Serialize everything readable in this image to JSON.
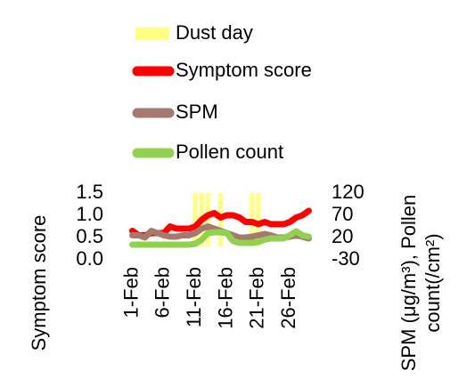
{
  "chart_data": {
    "type": "line",
    "categories": [
      "1-Feb",
      null,
      null,
      null,
      null,
      "6-Feb",
      null,
      null,
      null,
      null,
      "11-Feb",
      null,
      null,
      null,
      null,
      "16-Feb",
      null,
      null,
      null,
      null,
      "21-Feb",
      null,
      null,
      null,
      null,
      "26-Feb",
      null,
      null,
      null
    ],
    "series": [
      {
        "name": "Dust day",
        "type": "bar",
        "axis": "y2",
        "color": "#ffff80",
        "values": [
          null,
          null,
          null,
          null,
          null,
          null,
          null,
          null,
          null,
          null,
          120,
          120,
          120,
          null,
          120,
          null,
          null,
          null,
          null,
          120,
          120,
          null,
          null,
          null,
          null,
          null,
          null,
          null,
          null
        ]
      },
      {
        "name": "Symptom score",
        "type": "line",
        "color": "#ff0000",
        "values": [
          0.65,
          0.55,
          0.55,
          0.6,
          0.6,
          0.6,
          0.75,
          0.7,
          0.7,
          0.7,
          0.75,
          0.9,
          1.0,
          1.05,
          0.95,
          1.0,
          1.0,
          0.95,
          0.85,
          0.85,
          0.8,
          0.85,
          0.8,
          0.8,
          0.8,
          0.85,
          0.95,
          1.0,
          1.1
        ]
      },
      {
        "name": "SPM",
        "type": "line",
        "axis": "y2",
        "color": "#a47a6e",
        "values": [
          25,
          25,
          20,
          35,
          30,
          25,
          22,
          22,
          25,
          25,
          30,
          40,
          45,
          40,
          35,
          30,
          25,
          20,
          20,
          22,
          25,
          28,
          25,
          20,
          20,
          22,
          25,
          22,
          18
        ]
      },
      {
        "name": "Pollen count",
        "type": "line",
        "axis": "y2",
        "color": "#92d050",
        "values": [
          4,
          4,
          4,
          4,
          4,
          4,
          4,
          4,
          4,
          4,
          6,
          15,
          30,
          32,
          32,
          30,
          12,
          8,
          8,
          8,
          10,
          15,
          18,
          18,
          18,
          25,
          34,
          25,
          22
        ]
      }
    ],
    "ylim": [
      0,
      1.5
    ],
    "yticks": [
      {
        "value": 0,
        "label": "0.0"
      },
      0.5,
      {
        "value": 1,
        "label": "1.0"
      },
      1.5
    ],
    "y2lim": [
      -30,
      120
    ],
    "y2ticks": [
      -30,
      20,
      70,
      120
    ],
    "y_label": "Symptom score",
    "y2_label": [
      "SPM (μg/m³), Pollen",
      "count(/cm²)"
    ],
    "legend": "top"
  }
}
